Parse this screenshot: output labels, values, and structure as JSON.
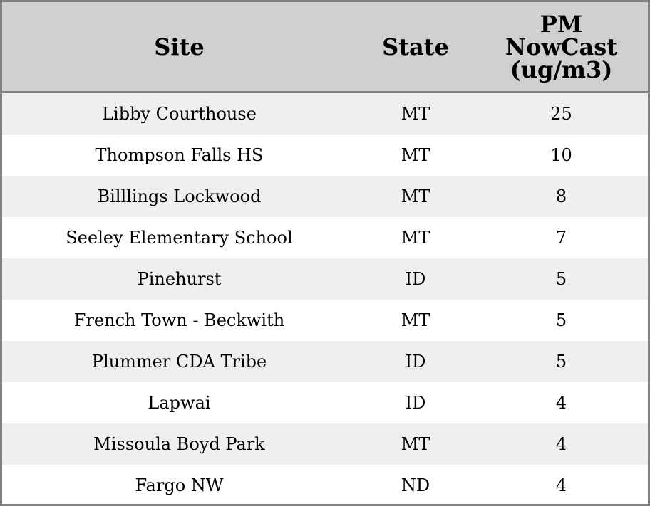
{
  "chart_data": {
    "type": "table",
    "columns": [
      "Site",
      "State",
      "PM NowCast (ug/m3)"
    ],
    "header_lines": [
      [
        "Site"
      ],
      [
        "State"
      ],
      [
        "PM",
        "NowCast",
        "(ug/m3)"
      ]
    ],
    "rows": [
      [
        "Libby Courthouse",
        "MT",
        "25"
      ],
      [
        "Thompson Falls HS",
        "MT",
        "10"
      ],
      [
        "Billlings Lockwood",
        "MT",
        "8"
      ],
      [
        "Seeley Elementary School",
        "MT",
        "7"
      ],
      [
        "Pinehurst",
        "ID",
        "5"
      ],
      [
        "French Town - Beckwith",
        "MT",
        "5"
      ],
      [
        "Plummer CDA Tribe",
        "ID",
        "5"
      ],
      [
        "Lapwai",
        "ID",
        "4"
      ],
      [
        "Missoula Boyd Park",
        "MT",
        "4"
      ],
      [
        "Fargo NW",
        "ND",
        "4"
      ]
    ],
    "colors": {
      "header_bg": "#d0d0d0",
      "stripe_bg": "#efefef",
      "border": "#808080"
    }
  }
}
